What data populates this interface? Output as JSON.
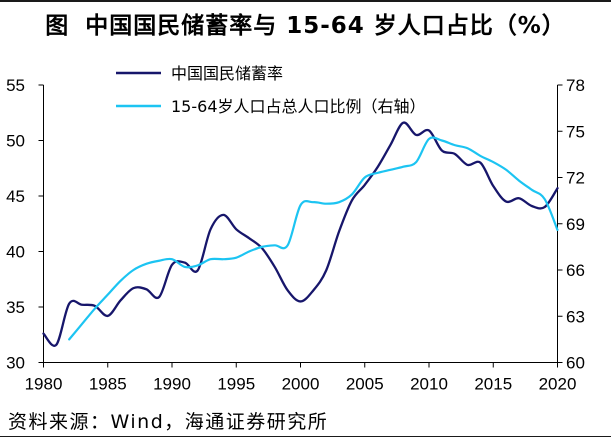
{
  "chart_data": {
    "type": "line",
    "figure_label": "图",
    "title": "中国国民储蓄率与 15-64 岁人口占比（%）",
    "xlim": [
      1980,
      2020
    ],
    "x_ticks": [
      1980,
      1985,
      1990,
      1995,
      2000,
      2005,
      2010,
      2015,
      2020
    ],
    "y_left": {
      "range": [
        30,
        55
      ],
      "ticks": [
        30,
        35,
        40,
        45,
        50,
        55
      ]
    },
    "y_right": {
      "range": [
        60,
        78
      ],
      "ticks": [
        60,
        63,
        66,
        69,
        72,
        75,
        78
      ]
    },
    "grid": false,
    "smoothed": true,
    "legend_position": "top-left",
    "series": [
      {
        "name": "中国国民储蓄率",
        "axis": "left",
        "color": "#17166B",
        "x": [
          1980,
          1981,
          1982,
          1983,
          1984,
          1985,
          1986,
          1987,
          1988,
          1989,
          1990,
          1991,
          1992,
          1993,
          1994,
          1995,
          1996,
          1997,
          1998,
          1999,
          2000,
          2001,
          2002,
          2003,
          2004,
          2005,
          2006,
          2007,
          2008,
          2009,
          2010,
          2011,
          2012,
          2013,
          2014,
          2015,
          2016,
          2017,
          2018,
          2019,
          2020
        ],
        "values": [
          32.6,
          31.6,
          35.3,
          35.2,
          35.1,
          34.2,
          35.6,
          36.7,
          36.6,
          35.9,
          38.8,
          39.0,
          38.3,
          42.0,
          43.3,
          42.0,
          41.2,
          40.3,
          38.6,
          36.5,
          35.5,
          36.5,
          38.3,
          41.8,
          44.6,
          46.0,
          47.6,
          49.6,
          51.6,
          50.5,
          50.9,
          49.1,
          48.8,
          47.8,
          48.0,
          45.9,
          44.5,
          44.8,
          44.1,
          44.0,
          45.7
        ]
      },
      {
        "name": "15-64岁人口占总人口比例（右轴）",
        "axis": "right",
        "color": "#1CC4F2",
        "x": [
          1982,
          1983,
          1984,
          1985,
          1986,
          1987,
          1988,
          1989,
          1990,
          1991,
          1992,
          1993,
          1994,
          1995,
          1996,
          1997,
          1998,
          1999,
          2000,
          2001,
          2002,
          2003,
          2004,
          2005,
          2006,
          2007,
          2008,
          2009,
          2010,
          2011,
          2012,
          2013,
          2014,
          2015,
          2016,
          2017,
          2018,
          2019,
          2020
        ],
        "values": [
          61.5,
          62.5,
          63.5,
          64.4,
          65.3,
          66.0,
          66.4,
          66.6,
          66.7,
          66.2,
          66.3,
          66.7,
          66.7,
          66.8,
          67.2,
          67.5,
          67.6,
          67.6,
          70.2,
          70.4,
          70.3,
          70.4,
          70.9,
          72.0,
          72.3,
          72.5,
          72.7,
          73.0,
          74.5,
          74.4,
          74.1,
          73.9,
          73.4,
          73.0,
          72.5,
          71.8,
          71.2,
          70.6,
          68.6
        ]
      }
    ]
  },
  "source": "资料来源：Wind，海通证券研究所",
  "axis_color": "#000000"
}
